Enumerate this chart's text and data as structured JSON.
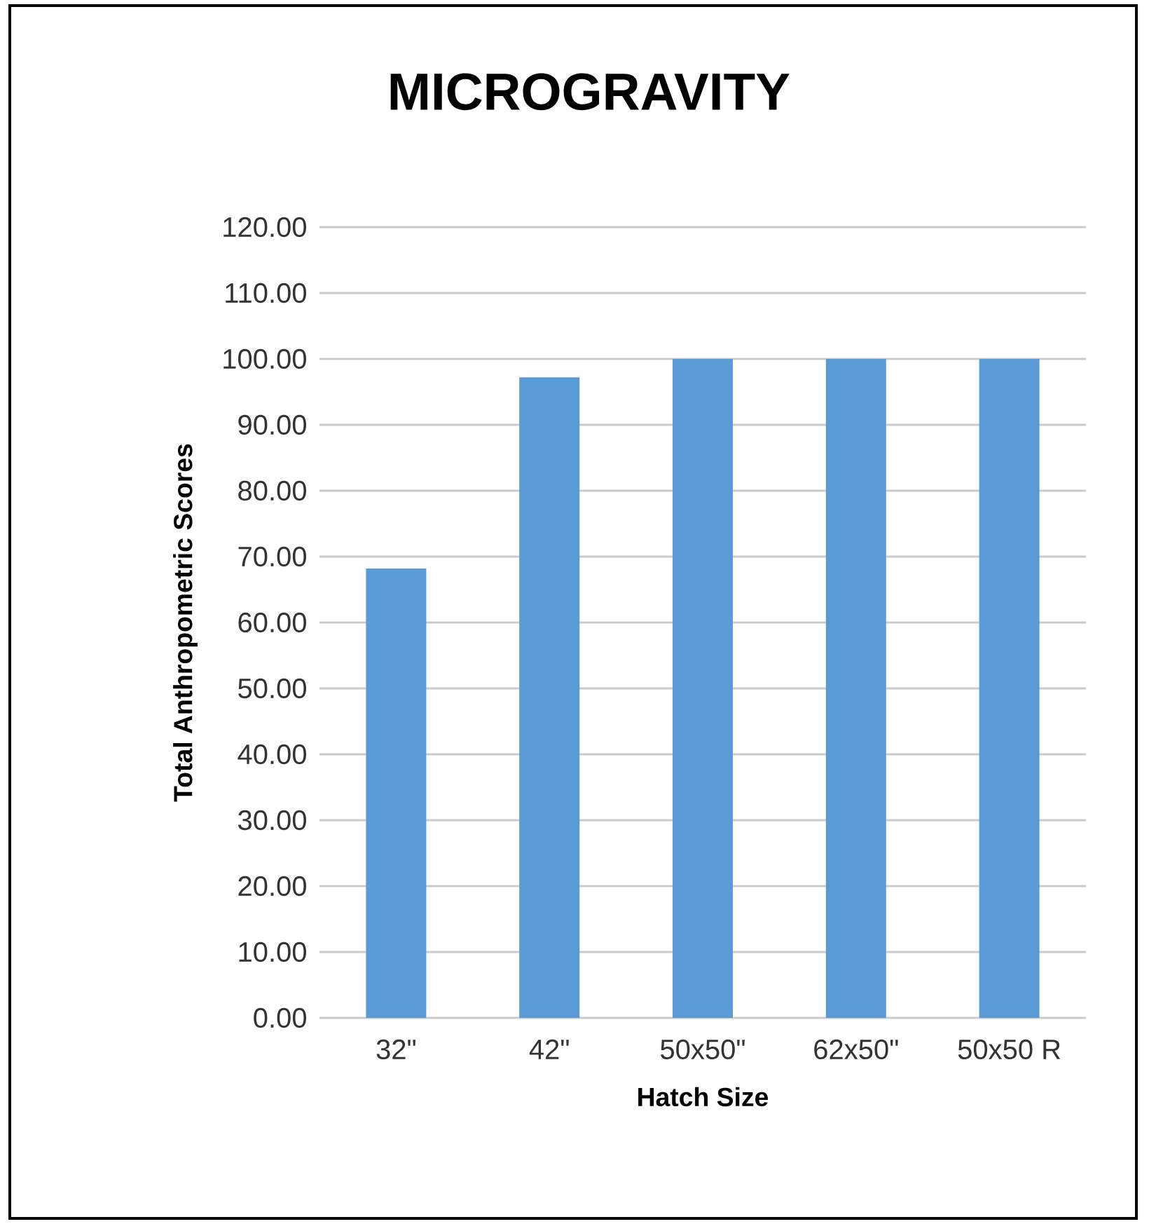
{
  "chart_data": {
    "type": "bar",
    "title": "MICROGRAVITY",
    "xlabel": "Hatch Size",
    "ylabel": "Total Anthropometric Scores",
    "categories": [
      "32\"",
      "42\"",
      "50x50\"",
      "62x50\"",
      "50x50 R"
    ],
    "values": [
      68.2,
      97.2,
      100,
      100,
      100
    ],
    "color": "#5b9bd5",
    "ylim": [
      0,
      120
    ],
    "yticks": [
      {
        "value": 0,
        "label": "0.00"
      },
      {
        "value": 10,
        "label": "10.00"
      },
      {
        "value": 20,
        "label": "20.00"
      },
      {
        "value": 30,
        "label": "30.00"
      },
      {
        "value": 40,
        "label": "40.00"
      },
      {
        "value": 50,
        "label": "50.00"
      },
      {
        "value": 60,
        "label": "60.00"
      },
      {
        "value": 70,
        "label": "70.00"
      },
      {
        "value": 80,
        "label": "80.00"
      },
      {
        "value": 90,
        "label": "90.00"
      },
      {
        "value": 100,
        "label": "100.00"
      },
      {
        "value": 110,
        "label": "110.00"
      },
      {
        "value": 120,
        "label": "120.00"
      }
    ],
    "grid": "y"
  }
}
